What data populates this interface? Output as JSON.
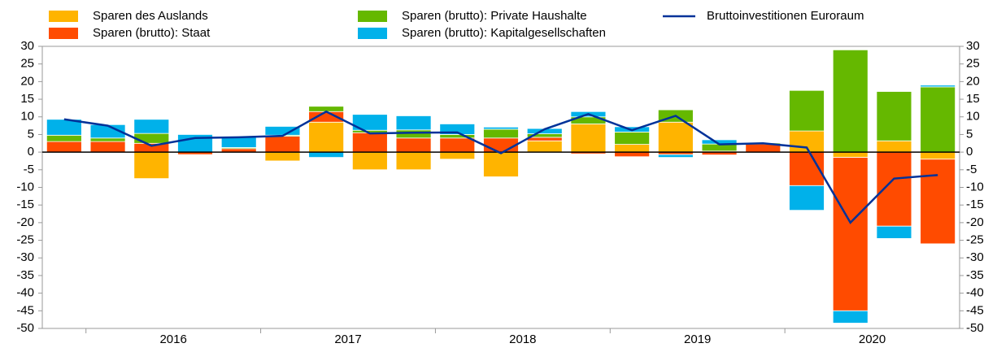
{
  "chart_data": {
    "type": "bar",
    "stacked": true,
    "categories": [
      null,
      null,
      null,
      null,
      null,
      null,
      null,
      null,
      null,
      null,
      null,
      null,
      null,
      null,
      null,
      null,
      null,
      null,
      null,
      null,
      null
    ],
    "group_labels": [
      "2016",
      "2017",
      "2018",
      "2019",
      "2020"
    ],
    "series": [
      {
        "name": "Sparen des Auslands",
        "color": "#ffb400",
        "values": [
          0,
          0,
          -7.5,
          0,
          0,
          -2.5,
          8.5,
          -5,
          -5,
          -2,
          -7,
          3.2,
          8,
          2.2,
          8.5,
          0.3,
          0,
          6,
          -1.5,
          3.2,
          -2
        ]
      },
      {
        "name": "Sparen (brutto): Staat",
        "color": "#ff4b00",
        "values": [
          3,
          3,
          2.5,
          -0.7,
          1,
          4.5,
          3,
          5.5,
          4,
          4,
          4,
          1,
          -0.5,
          -1.3,
          -0.7,
          -0.8,
          2.3,
          -9.5,
          -43.5,
          -21,
          -24
        ]
      },
      {
        "name": "Sparen (brutto): Private Haushalte",
        "color": "#65b800",
        "values": [
          1.8,
          1,
          2.8,
          0,
          0.3,
          0.3,
          1.5,
          0.7,
          2.3,
          1,
          2.5,
          1,
          2,
          3.5,
          3.5,
          2,
          0.3,
          11.5,
          29,
          14,
          18.5
        ]
      },
      {
        "name": "Sparen (brutto): Kapitalgesellschaften",
        "color": "#00b1ea",
        "values": [
          4.5,
          3.8,
          4,
          5,
          3,
          2.5,
          -1.5,
          4.5,
          4,
          3,
          0.6,
          1.5,
          1.5,
          1.5,
          -0.8,
          1.2,
          0,
          -7,
          -3.5,
          -3.5,
          0.5
        ]
      },
      {
        "name": "Bruttoinvestitionen Euroraum",
        "type": "line",
        "color": "#003299",
        "values": [
          9.3,
          7.5,
          1.8,
          4,
          4.2,
          4.6,
          11.5,
          5.3,
          5.5,
          5.6,
          -0.3,
          6.5,
          10.8,
          6.2,
          10.3,
          2.2,
          2.5,
          1.3,
          -20,
          -7.5,
          -6.5
        ]
      }
    ],
    "ylim": [
      -50,
      30
    ],
    "yticks": [
      -50,
      -45,
      -40,
      -35,
      -30,
      -25,
      -20,
      -15,
      -10,
      -5,
      0,
      5,
      10,
      15,
      20,
      25,
      30
    ]
  }
}
